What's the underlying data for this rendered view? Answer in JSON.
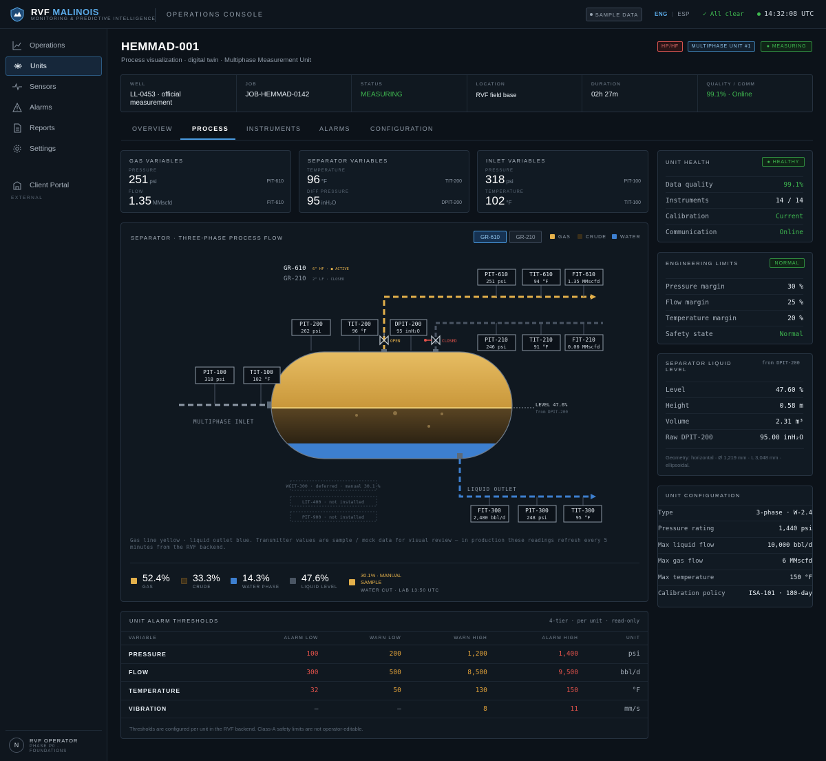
{
  "brand": {
    "name_main": "RVF",
    "name_accent": "MALINOIS",
    "subtitle": "MONITORING & PREDICTIVE INTELLIGENCE"
  },
  "topbar": {
    "console": "OPERATIONS CONSOLE",
    "sample_badge": "SAMPLE DATA",
    "lang_on": "ENG",
    "lang_off": "ESP",
    "status": "All clear",
    "clock": "14:32:08 UTC"
  },
  "sidebar": {
    "items": [
      {
        "label": "Operations",
        "icon": "chart-line-icon"
      },
      {
        "label": "Units",
        "icon": "unit-icon"
      },
      {
        "label": "Sensors",
        "icon": "pulse-icon"
      },
      {
        "label": "Alarms",
        "icon": "warning-icon"
      },
      {
        "label": "Reports",
        "icon": "document-icon"
      },
      {
        "label": "Settings",
        "icon": "gear-icon"
      }
    ],
    "external_label": "EXTERNAL",
    "external_items": [
      {
        "label": "Client Portal",
        "icon": "building-icon"
      }
    ],
    "operator": {
      "initial": "N",
      "name": "RVF OPERATOR",
      "sub": "PHASE P0 · FOUNDATIONS"
    }
  },
  "page": {
    "title": "HEMMAD-001",
    "subtitle": "Process visualization · digital twin · Multiphase Measurement Unit",
    "tags": [
      "HP/HF",
      "MULTIPHASE UNIT #1",
      "MEASURING"
    ]
  },
  "info": [
    {
      "label": "WELL",
      "value": "LL-0453 · official measurement"
    },
    {
      "label": "JOB",
      "value": "JOB-HEMMAD-0142"
    },
    {
      "label": "STATUS",
      "value": "MEASURING"
    },
    {
      "label": "LOCATION",
      "value": "RVF field base"
    },
    {
      "label": "DURATION",
      "value": "02h 27m"
    },
    {
      "label": "QUALITY / COMM",
      "value": "99.1% · Online"
    }
  ],
  "tabs": [
    "OVERVIEW",
    "PROCESS",
    "INSTRUMENTS",
    "ALARMS",
    "CONFIGURATION"
  ],
  "variables": [
    {
      "title": "GAS VARIABLES",
      "a_label": "PRESSURE",
      "a_value": "251",
      "a_unit": "psi",
      "a_tag": "PIT-610",
      "b_label": "FLOW",
      "b_value": "1.35",
      "b_unit": "MMscfd",
      "b_tag": "FIT-610"
    },
    {
      "title": "SEPARATOR VARIABLES",
      "a_label": "TEMPERATURE",
      "a_value": "96",
      "a_unit": "°F",
      "a_tag": "TIT-200",
      "b_label": "DIFF PRESSURE",
      "b_value": "95",
      "b_unit": "inH₂O",
      "b_tag": "DPIT-200"
    },
    {
      "title": "INLET VARIABLES",
      "a_label": "PRESSURE",
      "a_value": "318",
      "a_unit": "psi",
      "a_tag": "PIT-100",
      "b_label": "TEMPERATURE",
      "b_value": "102",
      "b_unit": "°F",
      "b_tag": "TIT-100"
    }
  ],
  "process": {
    "title": "SEPARATOR · THREE-PHASE PROCESS FLOW",
    "seg": [
      "GR-610",
      "GR-210"
    ],
    "legend": [
      "GAS",
      "CRUDE",
      "WATER"
    ],
    "line1_name": "GR-610",
    "line1_note": "6\" HF · ● ACTIVE",
    "line2_name": "GR-210",
    "line2_note": "2\" LF · CLOSED",
    "valve_open": "OPEN",
    "valve_closed": "CLOSED",
    "inlet_label": "MULTIPHASE INLET",
    "outlet_label": "LIQUID OUTLET",
    "level_label": "LEVEL 47.6%",
    "level_sub": "from DPIT-200",
    "instruments": {
      "pit610": {
        "tag": "PIT-610",
        "val": "251 psi"
      },
      "tit610": {
        "tag": "TIT-610",
        "val": "94 °F"
      },
      "fit610": {
        "tag": "FIT-610",
        "val": "1.35 MMscfd"
      },
      "pit200": {
        "tag": "PIT-200",
        "val": "262 psi"
      },
      "tit200": {
        "tag": "TIT-200",
        "val": "96 °F"
      },
      "dpit200": {
        "tag": "DPIT-200",
        "val": "95 inH₂O"
      },
      "pit210": {
        "tag": "PIT-210",
        "val": "246 psi"
      },
      "tit210": {
        "tag": "TIT-210",
        "val": "91 °F"
      },
      "fit210": {
        "tag": "FIT-210",
        "val": "0.00 MMscfd"
      },
      "pit100": {
        "tag": "PIT-100",
        "val": "318 psi"
      },
      "tit100": {
        "tag": "TIT-100",
        "val": "102 °F"
      },
      "fit300": {
        "tag": "FIT-300",
        "val": "2,480 bbl/d"
      },
      "pit300": {
        "tag": "PIT-300",
        "val": "248 psi"
      },
      "tit300": {
        "tag": "TIT-300",
        "val": "95 °F"
      }
    },
    "deferred": [
      "WCIT-300 · deferred · manual 30.1 %",
      "LIT-400 · not installed",
      "PIT-900 · not installed"
    ],
    "note": "Gas line yellow · liquid outlet blue. Transmitter values are sample / mock data for visual review — in production these readings refresh every 5 minutes from the RVF backend.",
    "stats": [
      {
        "value": "52.4%",
        "label": "GAS",
        "color": "#e3b04b"
      },
      {
        "value": "33.3%",
        "label": "CRUDE",
        "color": "#3a2f1a"
      },
      {
        "value": "14.3%",
        "label": "WATER PHASE",
        "color": "#3d7fcf"
      },
      {
        "value": "47.6%",
        "label": "LIQUID LEVEL",
        "color": "#4a5563"
      }
    ],
    "manual": {
      "line1": "30.1% · MANUAL",
      "line2": "SAMPLE",
      "sub": "WATER CUT · LAB 13:50 UTC"
    },
    "phase_fractions": {
      "gas": 52.4,
      "crude": 33.3,
      "water": 14.3
    }
  },
  "thresholds": {
    "title": "UNIT ALARM THRESHOLDS",
    "meta": "4-tier · per unit · read-only",
    "headers": [
      "VARIABLE",
      "ALARM LOW",
      "WARN LOW",
      "WARN HIGH",
      "ALARM HIGH",
      "UNIT"
    ],
    "rows": [
      [
        "PRESSURE",
        "100",
        "200",
        "1,200",
        "1,400",
        "psi"
      ],
      [
        "FLOW",
        "300",
        "500",
        "8,500",
        "9,500",
        "bbl/d"
      ],
      [
        "TEMPERATURE",
        "32",
        "50",
        "130",
        "150",
        "°F"
      ],
      [
        "VIBRATION",
        "—",
        "—",
        "8",
        "11",
        "mm/s"
      ]
    ],
    "footnote": "Thresholds are configured per unit in the RVF backend. Class-A safety limits are not operator-editable."
  },
  "health": {
    "title": "UNIT HEALTH",
    "badge": "HEALTHY",
    "rows": [
      [
        "Data quality",
        "99.1%"
      ],
      [
        "Instruments",
        "14 / 14"
      ],
      [
        "Calibration",
        "Current"
      ],
      [
        "Communication",
        "Online"
      ]
    ]
  },
  "limits": {
    "title": "ENGINEERING LIMITS",
    "badge": "NORMAL",
    "rows": [
      [
        "Pressure margin",
        "30 %"
      ],
      [
        "Flow margin",
        "25 %"
      ],
      [
        "Temperature margin",
        "20 %"
      ],
      [
        "Safety state",
        "Normal"
      ]
    ]
  },
  "liquid": {
    "title": "SEPARATOR LIQUID LEVEL",
    "source": "from DPIT-200",
    "rows": [
      [
        "Level",
        "47.60 %"
      ],
      [
        "Height",
        "0.58 m"
      ],
      [
        "Volume",
        "2.31 m³"
      ],
      [
        "Raw DPIT-200",
        "95.00 inH₂O"
      ]
    ],
    "note": "Geometry: horizontal · Ø 1,219 mm · L 3,048 mm · ellipsoidal."
  },
  "config": {
    "title": "UNIT CONFIGURATION",
    "rows": [
      [
        "Type",
        "3-phase · W-2.4"
      ],
      [
        "Pressure rating",
        "1,440 psi"
      ],
      [
        "Max liquid flow",
        "10,000 bbl/d"
      ],
      [
        "Max gas flow",
        "6 MMscfd"
      ],
      [
        "Max temperature",
        "150 °F"
      ],
      [
        "Calibration policy",
        "ISA-101 · 180-day"
      ]
    ]
  },
  "colors": {
    "accent": "#4a9be0",
    "ok": "#3fb950",
    "gas": "#e3b04b",
    "water": "#3d7fcf",
    "alarm": "#e5534b",
    "warn": "#e3a33a"
  }
}
